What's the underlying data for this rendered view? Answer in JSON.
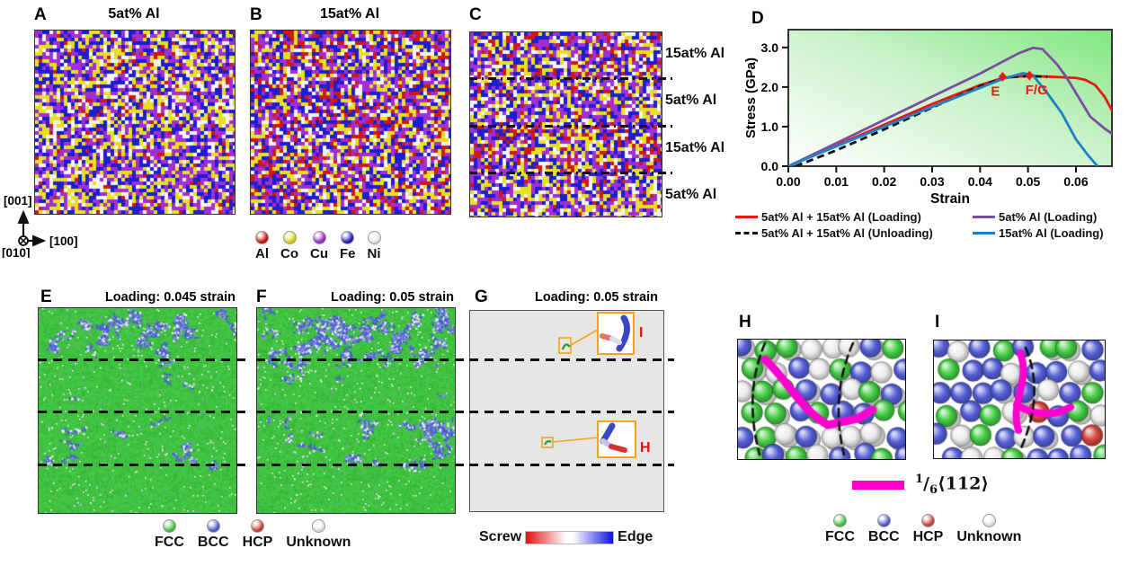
{
  "panel_a": {
    "label": "A",
    "title": "5at% Al"
  },
  "panel_b": {
    "label": "B",
    "title": "15at% Al"
  },
  "panel_c": {
    "label": "C",
    "layer_labels": [
      "15at% Al",
      "5at% Al",
      "15at% Al",
      "5at% Al"
    ]
  },
  "panel_d": {
    "label": "D"
  },
  "panel_e": {
    "label": "E",
    "title": "Loading: 0.045 strain"
  },
  "panel_f": {
    "label": "F",
    "title": "Loading: 0.05 strain"
  },
  "panel_g": {
    "label": "G",
    "title": "Loading: 0.05 strain",
    "inset_top_label": "I",
    "inset_bottom_label": "H"
  },
  "panel_h": {
    "label": "H"
  },
  "panel_i": {
    "label": "I"
  },
  "axes_marker": {
    "up": "[001]",
    "right": "[100]",
    "out": "[010]"
  },
  "element_legend": {
    "items": [
      {
        "name": "Al",
        "color": "#d01710"
      },
      {
        "name": "Co",
        "color": "#e6e01e"
      },
      {
        "name": "Cu",
        "color": "#a02fd6"
      },
      {
        "name": "Fe",
        "color": "#1d1dd2"
      },
      {
        "name": "Ni",
        "color": "#f4f4f4"
      }
    ]
  },
  "structure_legend_left": {
    "items": [
      {
        "name": "FCC",
        "color": "#4ecb4e"
      },
      {
        "name": "BCC",
        "color": "#5a62d2"
      },
      {
        "name": "HCP",
        "color": "#d4473d"
      },
      {
        "name": "Unknown",
        "color": "#f0f0f0"
      }
    ]
  },
  "structure_legend_right": {
    "items": [
      {
        "name": "FCC",
        "color": "#4ecb4e"
      },
      {
        "name": "BCC",
        "color": "#5a62d2"
      },
      {
        "name": "HCP",
        "color": "#d4473d"
      },
      {
        "name": "Unknown",
        "color": "#f0f0f0"
      }
    ]
  },
  "screw_edge_legend": {
    "left": "Screw",
    "right": "Edge",
    "screw_color": "#e01010",
    "edge_color": "#1212dd"
  },
  "burgers_legend": {
    "numerator": "1",
    "slash": "/",
    "denominator": "6",
    "vector": "⟨112⟩",
    "color": "#ff00d0"
  },
  "chart_data": {
    "type": "line",
    "title": "",
    "xlabel": "Strain",
    "ylabel": "Stress (GPa)",
    "xlim": [
      0,
      0.0675
    ],
    "ylim": [
      0,
      3.45
    ],
    "xticks": [
      0.0,
      0.01,
      0.02,
      0.03,
      0.04,
      0.05,
      0.06
    ],
    "yticks": [
      0.0,
      1.0,
      2.0,
      3.0
    ],
    "grid": false,
    "legend_position": "below",
    "background": {
      "gradient_from": "#ffffff",
      "gradient_to": "#7fe87f"
    },
    "series": [
      {
        "name": "5at% Al + 15at% Al (Loading)",
        "color": "#e8190f",
        "dash": false,
        "x": [
          0,
          0.01,
          0.02,
          0.03,
          0.04,
          0.044,
          0.047,
          0.05,
          0.055,
          0.06,
          0.062,
          0.064,
          0.066,
          0.068
        ],
        "y": [
          0,
          0.52,
          1.05,
          1.57,
          2.05,
          2.2,
          2.26,
          2.28,
          2.26,
          2.23,
          2.18,
          2.05,
          1.75,
          1.3
        ]
      },
      {
        "name": "5at% Al + 15at% Al (Unloading)",
        "color": "#111111",
        "dash": true,
        "x": [
          0.0015,
          0.01,
          0.02,
          0.03,
          0.04,
          0.045,
          0.05,
          0.054
        ],
        "y": [
          0,
          0.4,
          0.93,
          1.48,
          2.02,
          2.24,
          2.28,
          2.26
        ]
      },
      {
        "name": "5at% Al (Loading)",
        "color": "#7b4fa0",
        "dash": false,
        "x": [
          0,
          0.01,
          0.02,
          0.03,
          0.04,
          0.048,
          0.051,
          0.053,
          0.056,
          0.058,
          0.06,
          0.063,
          0.066,
          0.068
        ],
        "y": [
          0,
          0.58,
          1.17,
          1.76,
          2.34,
          2.85,
          2.99,
          2.96,
          2.58,
          2.25,
          1.85,
          1.25,
          0.95,
          0.78
        ]
      },
      {
        "name": "15at% Al (Loading)",
        "color": "#1e82c8",
        "dash": false,
        "x": [
          0,
          0.01,
          0.02,
          0.03,
          0.04,
          0.045,
          0.049,
          0.051,
          0.054,
          0.057,
          0.06,
          0.0625,
          0.0645
        ],
        "y": [
          0,
          0.5,
          1.0,
          1.5,
          1.98,
          2.22,
          2.35,
          2.3,
          1.85,
          1.35,
          0.68,
          0.28,
          0
        ]
      }
    ],
    "point_markers": [
      {
        "label": "E",
        "x": 0.0447,
        "y": 2.26,
        "color": "#e8190f"
      },
      {
        "label": "F/G",
        "x": 0.0503,
        "y": 2.29,
        "color": "#e8190f"
      }
    ],
    "legend": [
      {
        "name": "5at% Al + 15at% Al (Loading)",
        "color": "#e8190f",
        "dash": false
      },
      {
        "name": "5at% Al (Loading)",
        "color": "#7b4fa0",
        "dash": false
      },
      {
        "name": "5at% Al + 15at% Al (Unloading)",
        "color": "#111111",
        "dash": true
      },
      {
        "name": "15at% Al (Loading)",
        "color": "#1e82c8",
        "dash": false
      }
    ]
  }
}
